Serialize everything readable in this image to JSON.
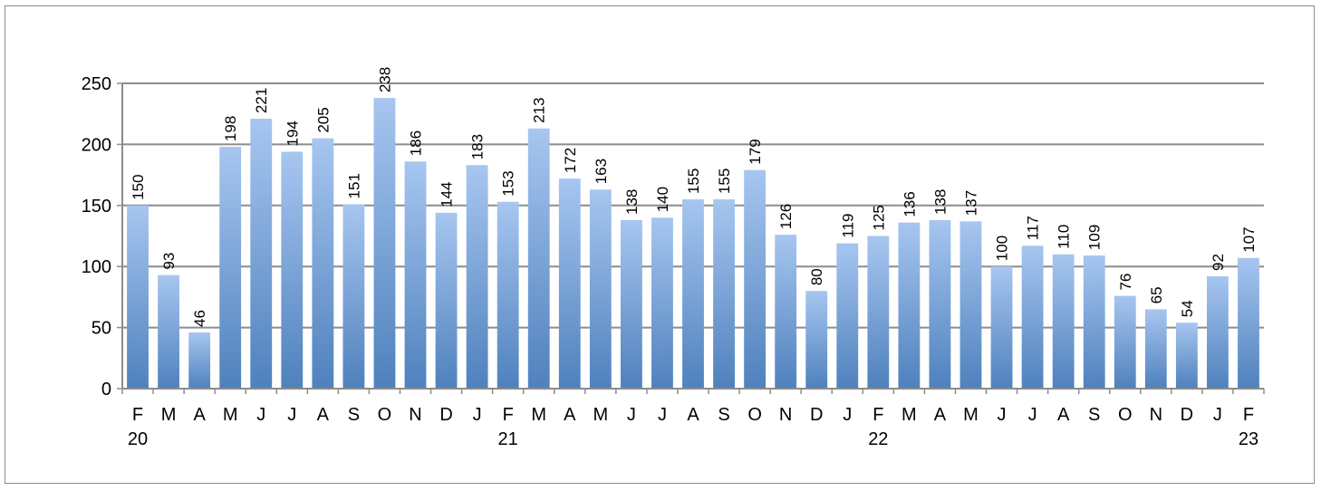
{
  "chart_data": {
    "type": "bar",
    "categories": [
      "F",
      "M",
      "A",
      "M",
      "J",
      "J",
      "A",
      "S",
      "O",
      "N",
      "D",
      "J",
      "F",
      "M",
      "A",
      "M",
      "J",
      "J",
      "A",
      "S",
      "O",
      "N",
      "D",
      "J",
      "F",
      "M",
      "A",
      "M",
      "J",
      "J",
      "A",
      "S",
      "O",
      "N",
      "D",
      "J",
      "F"
    ],
    "values": [
      150,
      93,
      46,
      198,
      221,
      194,
      205,
      151,
      238,
      186,
      144,
      183,
      153,
      213,
      172,
      163,
      138,
      140,
      155,
      155,
      179,
      126,
      80,
      119,
      125,
      136,
      138,
      137,
      100,
      117,
      110,
      109,
      76,
      65,
      54,
      92,
      107
    ],
    "year_labels": [
      {
        "index": 0,
        "label": "20"
      },
      {
        "index": 12,
        "label": "21"
      },
      {
        "index": 24,
        "label": "22"
      },
      {
        "index": 36,
        "label": "23"
      }
    ],
    "title": "",
    "xlabel": "",
    "ylabel": "",
    "ylim": [
      0,
      250
    ],
    "yticks": [
      0,
      50,
      100,
      150,
      200,
      250
    ],
    "grid": true,
    "data_labels": "vertical, above bars",
    "colors": {
      "bar_top": "#a7c6f0",
      "bar_bottom": "#4f81bd",
      "grid": "#8c8c8c",
      "axis": "#8c8c8c"
    }
  }
}
